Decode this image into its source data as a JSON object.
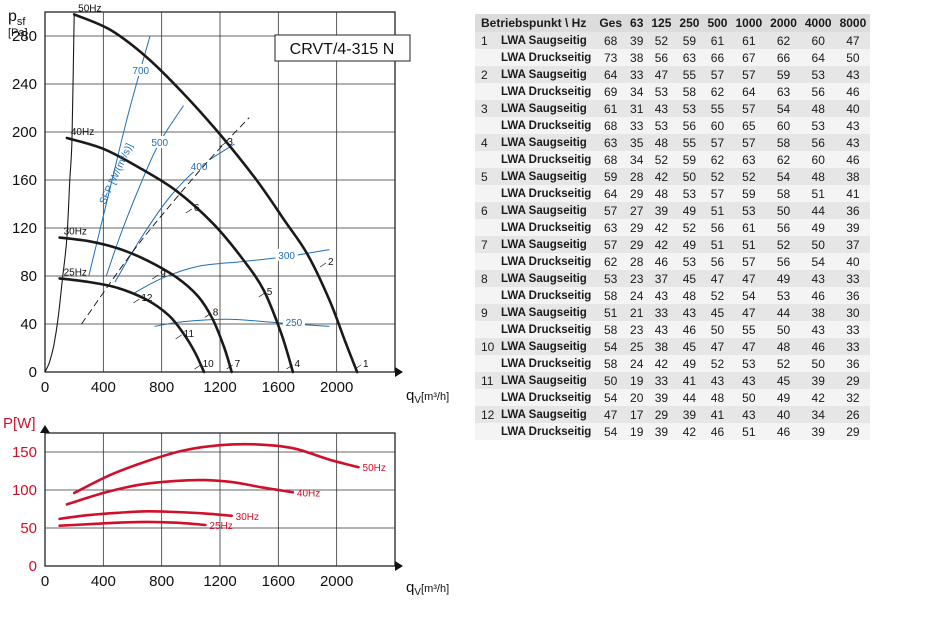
{
  "chart_data": [
    {
      "type": "line",
      "title": "CRVT/4-315 N",
      "ylabel_main": "p",
      "ylabel_sub": "sf",
      "yunit": "[Pa]",
      "xlabel_main": "q",
      "xlabel_sub": "V",
      "xunit": "[m³/h]",
      "xlim": [
        0,
        2400
      ],
      "ylim": [
        0,
        300
      ],
      "xticks": [
        0,
        400,
        800,
        1200,
        1600,
        2000
      ],
      "yticks": [
        0,
        40,
        80,
        120,
        160,
        200,
        240,
        280
      ],
      "grid": true,
      "series": [
        {
          "name": "50Hz",
          "role": "fan-curve",
          "points": [
            [
              200,
              298
            ],
            [
              450,
              285
            ],
            [
              700,
              262
            ],
            [
              950,
              232
            ],
            [
              1200,
              198
            ],
            [
              1450,
              160
            ],
            [
              1650,
              125
            ],
            [
              1800,
              98
            ],
            [
              1950,
              60
            ],
            [
              2060,
              25
            ],
            [
              2140,
              0
            ]
          ]
        },
        {
          "name": "40Hz",
          "role": "fan-curve",
          "points": [
            [
              150,
              195
            ],
            [
              400,
              186
            ],
            [
              650,
              170
            ],
            [
              900,
              151
            ],
            [
              1150,
              124
            ],
            [
              1350,
              95
            ],
            [
              1500,
              68
            ],
            [
              1620,
              32
            ],
            [
              1700,
              0
            ]
          ]
        },
        {
          "name": "30Hz",
          "role": "fan-curve",
          "points": [
            [
              100,
              112
            ],
            [
              300,
              109
            ],
            [
              500,
              103
            ],
            [
              700,
              93
            ],
            [
              900,
              79
            ],
            [
              1050,
              63
            ],
            [
              1150,
              44
            ],
            [
              1230,
              20
            ],
            [
              1280,
              0
            ]
          ]
        },
        {
          "name": "25Hz",
          "role": "fan-curve",
          "points": [
            [
              100,
              78
            ],
            [
              300,
              75
            ],
            [
              500,
              70
            ],
            [
              700,
              60
            ],
            [
              850,
              47
            ],
            [
              950,
              32
            ],
            [
              1030,
              16
            ],
            [
              1090,
              0
            ]
          ]
        },
        {
          "name": "",
          "role": "stall-limit",
          "points": [
            [
              0,
              0
            ],
            [
              30,
              8
            ],
            [
              60,
              22
            ],
            [
              90,
              45
            ],
            [
              120,
              78
            ],
            [
              150,
              112
            ],
            [
              170,
              160
            ],
            [
              185,
              195
            ],
            [
              200,
              298
            ]
          ]
        }
      ],
      "sfp_label": "SFP [W/(m³/s)]",
      "sfp_lines": [
        {
          "label": "700",
          "points": [
            [
              300,
              80
            ],
            [
              380,
              120
            ],
            [
              470,
              165
            ],
            [
              560,
              210
            ],
            [
              650,
              250
            ],
            [
              720,
              280
            ]
          ]
        },
        {
          "label": "500",
          "points": [
            [
              420,
              80
            ],
            [
              520,
              115
            ],
            [
              650,
              155
            ],
            [
              780,
              190
            ],
            [
              950,
              222
            ]
          ]
        },
        {
          "label": "400",
          "points": [
            [
              480,
              75
            ],
            [
              650,
              110
            ],
            [
              850,
              145
            ],
            [
              1050,
              170
            ],
            [
              1300,
              190
            ]
          ]
        },
        {
          "label": "300",
          "points": [
            [
              600,
              65
            ],
            [
              800,
              78
            ],
            [
              1050,
              88
            ],
            [
              1350,
              92
            ],
            [
              1650,
              96
            ],
            [
              1950,
              102
            ]
          ]
        },
        {
          "label": "250",
          "points": [
            [
              750,
              38
            ],
            [
              950,
              42
            ],
            [
              1250,
              44
            ],
            [
              1500,
              42
            ],
            [
              1700,
              40
            ],
            [
              1950,
              38
            ]
          ]
        }
      ],
      "system_curve": {
        "points": [
          [
            250,
            40
          ],
          [
            600,
            100
          ],
          [
            900,
            145
          ],
          [
            1150,
            180
          ],
          [
            1400,
            212
          ]
        ]
      },
      "operating_points": [
        {
          "label": "1",
          "q": 2160,
          "p": 5
        },
        {
          "label": "2",
          "q": 1920,
          "p": 90
        },
        {
          "label": "3",
          "q": 1230,
          "p": 190
        },
        {
          "label": "4",
          "q": 1690,
          "p": 5
        },
        {
          "label": "5",
          "q": 1500,
          "p": 65
        },
        {
          "label": "6",
          "q": 1000,
          "p": 135
        },
        {
          "label": "7",
          "q": 1280,
          "p": 5
        },
        {
          "label": "8",
          "q": 1130,
          "p": 48
        },
        {
          "label": "9",
          "q": 770,
          "p": 80
        },
        {
          "label": "10",
          "q": 1060,
          "p": 5
        },
        {
          "label": "11",
          "q": 930,
          "p": 30
        },
        {
          "label": "12",
          "q": 640,
          "p": 60
        }
      ]
    },
    {
      "type": "line",
      "ylabel": "P[W]",
      "xlabel_main": "q",
      "xlabel_sub": "V",
      "xunit": "[m³/h]",
      "xlim": [
        0,
        2400
      ],
      "ylim": [
        0,
        175
      ],
      "xticks": [
        0,
        400,
        800,
        1200,
        1600,
        2000
      ],
      "yticks": [
        0,
        50,
        100,
        150
      ],
      "grid": true,
      "series": [
        {
          "name": "50Hz",
          "points": [
            [
              200,
              96
            ],
            [
              450,
              120
            ],
            [
              700,
              138
            ],
            [
              950,
              152
            ],
            [
              1200,
              159
            ],
            [
              1450,
              160
            ],
            [
              1700,
              155
            ],
            [
              1950,
              140
            ],
            [
              2150,
              130
            ]
          ]
        },
        {
          "name": "40Hz",
          "points": [
            [
              150,
              81
            ],
            [
              400,
              96
            ],
            [
              650,
              107
            ],
            [
              900,
              112
            ],
            [
              1100,
              113
            ],
            [
              1300,
              110
            ],
            [
              1500,
              103
            ],
            [
              1700,
              97
            ]
          ]
        },
        {
          "name": "30Hz",
          "points": [
            [
              100,
              62
            ],
            [
              300,
              67
            ],
            [
              500,
              70
            ],
            [
              700,
              72
            ],
            [
              900,
              71
            ],
            [
              1100,
              69
            ],
            [
              1280,
              66
            ]
          ]
        },
        {
          "name": "25Hz",
          "points": [
            [
              100,
              53
            ],
            [
              300,
              55
            ],
            [
              500,
              57
            ],
            [
              700,
              58
            ],
            [
              900,
              57
            ],
            [
              1100,
              54
            ]
          ]
        }
      ]
    }
  ],
  "table": {
    "header": [
      "Betriebspunkt \\ Hz",
      "Ges",
      "63",
      "125",
      "250",
      "500",
      "1000",
      "2000",
      "4000",
      "8000"
    ],
    "rows": [
      {
        "op": "1",
        "type": "LWA Saugseitig",
        "values": [
          "68",
          "39",
          "52",
          "59",
          "61",
          "61",
          "62",
          "60",
          "47"
        ]
      },
      {
        "op": "",
        "type": "LWA Druckseitig",
        "values": [
          "73",
          "38",
          "56",
          "63",
          "66",
          "67",
          "66",
          "64",
          "50"
        ]
      },
      {
        "op": "2",
        "type": "LWA Saugseitig",
        "values": [
          "64",
          "33",
          "47",
          "55",
          "57",
          "57",
          "59",
          "53",
          "43"
        ]
      },
      {
        "op": "",
        "type": "LWA Druckseitig",
        "values": [
          "69",
          "34",
          "53",
          "58",
          "62",
          "64",
          "63",
          "56",
          "46"
        ]
      },
      {
        "op": "3",
        "type": "LWA Saugseitig",
        "values": [
          "61",
          "31",
          "43",
          "53",
          "55",
          "57",
          "54",
          "48",
          "40"
        ]
      },
      {
        "op": "",
        "type": "LWA Druckseitig",
        "values": [
          "68",
          "33",
          "53",
          "56",
          "60",
          "65",
          "60",
          "53",
          "43"
        ]
      },
      {
        "op": "4",
        "type": "LWA Saugseitig",
        "values": [
          "63",
          "35",
          "48",
          "55",
          "57",
          "57",
          "58",
          "56",
          "43"
        ]
      },
      {
        "op": "",
        "type": "LWA Druckseitig",
        "values": [
          "68",
          "34",
          "52",
          "59",
          "62",
          "63",
          "62",
          "60",
          "46"
        ]
      },
      {
        "op": "5",
        "type": "LWA Saugseitig",
        "values": [
          "59",
          "28",
          "42",
          "50",
          "52",
          "52",
          "54",
          "48",
          "38"
        ]
      },
      {
        "op": "",
        "type": "LWA Druckseitig",
        "values": [
          "64",
          "29",
          "48",
          "53",
          "57",
          "59",
          "58",
          "51",
          "41"
        ]
      },
      {
        "op": "6",
        "type": "LWA Saugseitig",
        "values": [
          "57",
          "27",
          "39",
          "49",
          "51",
          "53",
          "50",
          "44",
          "36"
        ]
      },
      {
        "op": "",
        "type": "LWA Druckseitig",
        "values": [
          "63",
          "29",
          "42",
          "52",
          "56",
          "61",
          "56",
          "49",
          "39"
        ]
      },
      {
        "op": "7",
        "type": "LWA Saugseitig",
        "values": [
          "57",
          "29",
          "42",
          "49",
          "51",
          "51",
          "52",
          "50",
          "37"
        ]
      },
      {
        "op": "",
        "type": "LWA Druckseitig",
        "values": [
          "62",
          "28",
          "46",
          "53",
          "56",
          "57",
          "56",
          "54",
          "40"
        ]
      },
      {
        "op": "8",
        "type": "LWA Saugseitig",
        "values": [
          "53",
          "23",
          "37",
          "45",
          "47",
          "47",
          "49",
          "43",
          "33"
        ]
      },
      {
        "op": "",
        "type": "LWA Druckseitig",
        "values": [
          "58",
          "24",
          "43",
          "48",
          "52",
          "54",
          "53",
          "46",
          "36"
        ]
      },
      {
        "op": "9",
        "type": "LWA Saugseitig",
        "values": [
          "51",
          "21",
          "33",
          "43",
          "45",
          "47",
          "44",
          "38",
          "30"
        ]
      },
      {
        "op": "",
        "type": "LWA Druckseitig",
        "values": [
          "58",
          "23",
          "43",
          "46",
          "50",
          "55",
          "50",
          "43",
          "33"
        ]
      },
      {
        "op": "10",
        "type": "LWA Saugseitig",
        "values": [
          "54",
          "25",
          "38",
          "45",
          "47",
          "47",
          "48",
          "46",
          "33"
        ]
      },
      {
        "op": "",
        "type": "LWA Druckseitig",
        "values": [
          "58",
          "24",
          "42",
          "49",
          "52",
          "53",
          "52",
          "50",
          "36"
        ]
      },
      {
        "op": "11",
        "type": "LWA Saugseitig",
        "values": [
          "50",
          "19",
          "33",
          "41",
          "43",
          "43",
          "45",
          "39",
          "29"
        ]
      },
      {
        "op": "",
        "type": "LWA Druckseitig",
        "values": [
          "54",
          "20",
          "39",
          "44",
          "48",
          "50",
          "49",
          "42",
          "32"
        ]
      },
      {
        "op": "12",
        "type": "LWA Saugseitig",
        "values": [
          "47",
          "17",
          "29",
          "39",
          "41",
          "43",
          "40",
          "34",
          "26"
        ]
      },
      {
        "op": "",
        "type": "LWA Druckseitig",
        "values": [
          "54",
          "19",
          "39",
          "42",
          "46",
          "51",
          "46",
          "39",
          "29"
        ]
      }
    ]
  },
  "colors": {
    "fan_curve": "#1a1a1a",
    "sfp": "#1f6fb5",
    "power": "#d0102a",
    "grid": "#222222",
    "table_header": "#dcdcdc"
  }
}
